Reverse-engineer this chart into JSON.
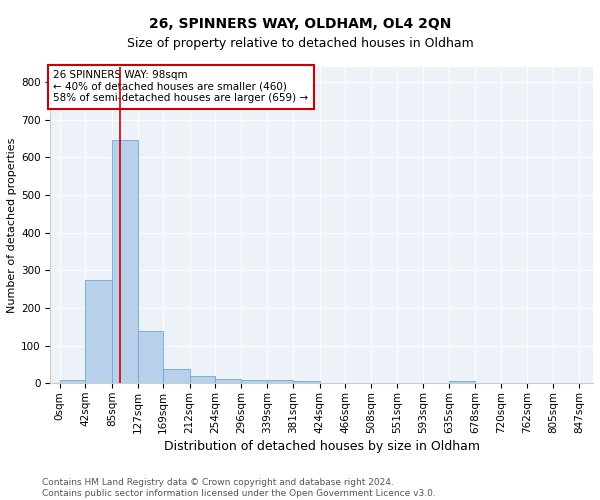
{
  "title1": "26, SPINNERS WAY, OLDHAM, OL4 2QN",
  "title2": "Size of property relative to detached houses in Oldham",
  "xlabel": "Distribution of detached houses by size in Oldham",
  "ylabel": "Number of detached properties",
  "footer": "Contains HM Land Registry data © Crown copyright and database right 2024.\nContains public sector information licensed under the Open Government Licence v3.0.",
  "bin_labels": [
    "0sqm",
    "42sqm",
    "85sqm",
    "127sqm",
    "169sqm",
    "212sqm",
    "254sqm",
    "296sqm",
    "339sqm",
    "381sqm",
    "424sqm",
    "466sqm",
    "508sqm",
    "551sqm",
    "593sqm",
    "635sqm",
    "678sqm",
    "720sqm",
    "762sqm",
    "805sqm",
    "847sqm"
  ],
  "bar_values": [
    8,
    275,
    645,
    138,
    38,
    20,
    12,
    10,
    10,
    7,
    0,
    0,
    0,
    0,
    0,
    7,
    0,
    0,
    0,
    0
  ],
  "bar_color": "#b8d0ea",
  "bar_edge_color": "#6aaad4",
  "property_line_x": 98,
  "annotation_text": "26 SPINNERS WAY: 98sqm\n← 40% of detached houses are smaller (460)\n58% of semi-detached houses are larger (659) →",
  "annotation_box_color": "#ffffff",
  "annotation_box_edge": "#cc0000",
  "vline_color": "#cc0000",
  "ylim": [
    0,
    840
  ],
  "yticks": [
    0,
    100,
    200,
    300,
    400,
    500,
    600,
    700,
    800
  ],
  "background_color": "#edf2f9",
  "grid_color": "#ffffff",
  "title1_fontsize": 10,
  "title2_fontsize": 9,
  "axis_fontsize": 7.5,
  "ylabel_fontsize": 8,
  "xlabel_fontsize": 9,
  "annotation_fontsize": 7.5,
  "footer_fontsize": 6.5
}
